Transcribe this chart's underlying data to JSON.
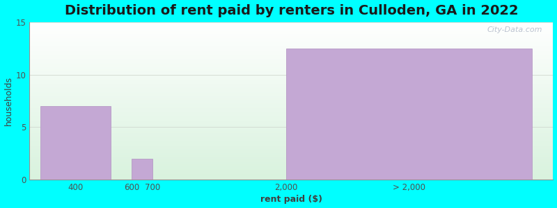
{
  "title": "Distribution of rent paid by renters in Culloden, GA in 2022",
  "xlabel": "rent paid ($)",
  "ylabel": "households",
  "background_color": "#00FFFF",
  "bar_color": "#C4A8D4",
  "bar_edge_color": "#B090C0",
  "ylim": [
    0,
    15
  ],
  "yticks": [
    0,
    5,
    10,
    15
  ],
  "grid_color": "#D0D8D0",
  "title_fontsize": 14,
  "axis_label_fontsize": 9,
  "tick_fontsize": 8.5,
  "watermark_text": "City-Data.com",
  "bars": [
    {
      "x_start": 0,
      "x_end": 1.0,
      "height": 7
    },
    {
      "x_start": 1.3,
      "x_end": 1.6,
      "height": 2
    },
    {
      "x_start": 3.5,
      "x_end": 7.0,
      "height": 12.5
    }
  ],
  "xtick_positions": [
    0.5,
    1.3,
    1.6,
    3.5,
    5.25
  ],
  "xtick_labels": [
    "400",
    "600",
    "700",
    "2,000",
    "> 2,000"
  ],
  "xlim": [
    -0.15,
    7.3
  ],
  "plot_bg_colors": [
    "#d4edda",
    "#f0f0fa"
  ]
}
